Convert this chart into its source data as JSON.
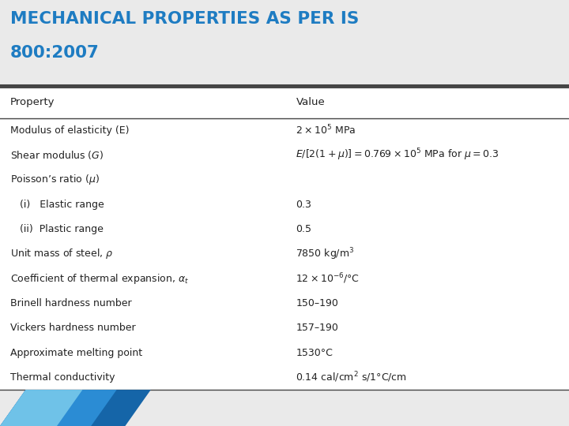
{
  "title_line1": "MECHANICAL PROPERTIES AS PER IS",
  "title_line2": "800:2007",
  "title_color": "#1E7CC2",
  "bg_color": "#EAEAEA",
  "table_bg": "#FFFFFF",
  "header_property": "Property",
  "header_value": "Value",
  "rows": [
    {
      "property": "Modulus of elasticity (E)",
      "value": "$2 \\times 10^5$ MPa",
      "indent": 0
    },
    {
      "property": "Shear modulus ($G$)",
      "value": "$E/[2(1 + \\mu)] = 0.769 \\times 10^5$ MPa for $\\mu = 0.3$",
      "indent": 0
    },
    {
      "property": "Poisson’s ratio ($\\mu$)",
      "value": "",
      "indent": 0
    },
    {
      "property": "   (i)   Elastic range",
      "value": "0.3",
      "indent": 1
    },
    {
      "property": "   (ii)  Plastic range",
      "value": "0.5",
      "indent": 1
    },
    {
      "property": "Unit mass of steel, $\\rho$",
      "value": "7850 kg/m$^3$",
      "indent": 0
    },
    {
      "property": "Coefficient of thermal expansion, $\\alpha_t$",
      "value": "$12 \\times 10^{-6}$/°C",
      "indent": 0
    },
    {
      "property": "Brinell hardness number",
      "value": "150–190",
      "indent": 0
    },
    {
      "property": "Vickers hardness number",
      "value": "157–190",
      "indent": 0
    },
    {
      "property": "Approximate melting point",
      "value": "1530°C",
      "indent": 0
    },
    {
      "property": "Thermal conductivity",
      "value": "0.14 cal/cm$^2$ s/1°C/cm",
      "indent": 0
    }
  ],
  "col_split": 0.5,
  "footer_colors": [
    "#1565A8",
    "#2B8CD4",
    "#6FC2E8"
  ],
  "line_color": "#444444",
  "text_color": "#222222"
}
